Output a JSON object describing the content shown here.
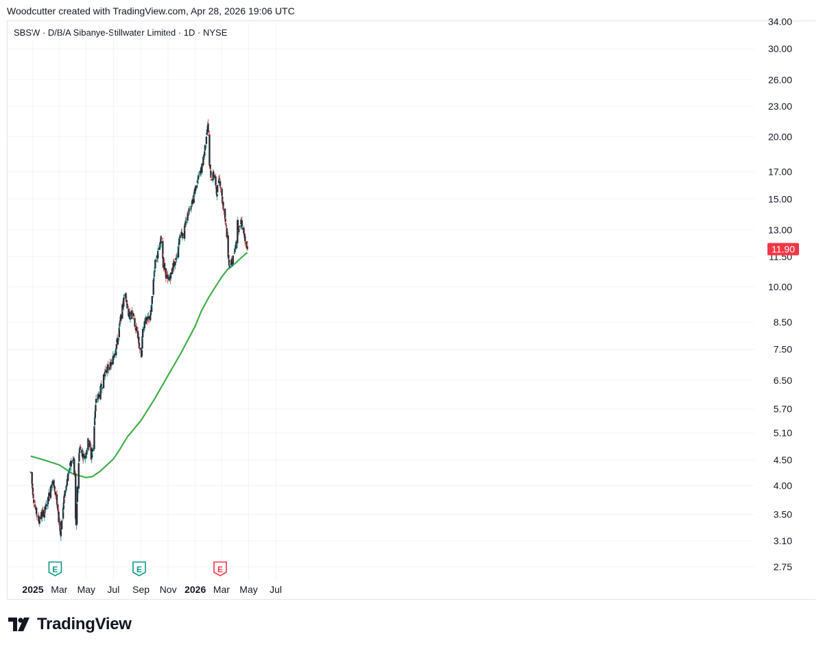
{
  "header": {
    "credit": "Woodcutter created with TradingView.com, Apr 28, 2026 19:06 UTC"
  },
  "symbol_line": "SBSW · D/B/A Sibanye-Stillwater Limited · 1D · NYSE",
  "brand": {
    "name": "TradingView",
    "logo_icon": "tradingview-logo-icon"
  },
  "colors": {
    "up": "#26a69a",
    "down": "#ef5350",
    "candle_body": "#2a2e39",
    "ma": "#3fae48",
    "price_label_bg": "#f23645",
    "grid": "#f0f3fa"
  },
  "chart_data": {
    "type": "candlestick",
    "y_scale": "log",
    "y_ticks": [
      "34.00",
      "30.00",
      "26.00",
      "23.00",
      "20.00",
      "17.00",
      "15.00",
      "13.00",
      "11.50",
      "10.00",
      "8.50",
      "7.50",
      "6.50",
      "5.70",
      "5.10",
      "4.50",
      "4.00",
      "3.50",
      "3.10",
      "2.75"
    ],
    "x_ticks": [
      {
        "label": "2025",
        "bold": true,
        "date": "2025-01-01"
      },
      {
        "label": "Mar",
        "bold": false,
        "date": "2025-03-01"
      },
      {
        "label": "May",
        "bold": false,
        "date": "2025-05-01"
      },
      {
        "label": "Jul",
        "bold": false,
        "date": "2025-07-01"
      },
      {
        "label": "Sep",
        "bold": false,
        "date": "2025-09-01"
      },
      {
        "label": "Nov",
        "bold": false,
        "date": "2025-11-01"
      },
      {
        "label": "2026",
        "bold": true,
        "date": "2026-01-01"
      },
      {
        "label": "Mar",
        "bold": false,
        "date": "2026-03-01"
      },
      {
        "label": "May",
        "bold": false,
        "date": "2026-05-01"
      },
      {
        "label": "Jul",
        "bold": false,
        "date": "2026-07-01"
      }
    ],
    "last_price": "11.90",
    "earnings_markers": [
      {
        "label": "E",
        "date": "2025-02-20",
        "color": "#089981"
      },
      {
        "label": "E",
        "date": "2025-08-28",
        "color": "#089981"
      },
      {
        "label": "E",
        "date": "2026-02-26",
        "color": "#f23645"
      }
    ],
    "price_path": [
      [
        "2024-12-27",
        4.25
      ],
      [
        "2025-01-03",
        3.75
      ],
      [
        "2025-01-08",
        3.55
      ],
      [
        "2025-01-14",
        3.4
      ],
      [
        "2025-01-20",
        3.5
      ],
      [
        "2025-01-27",
        3.55
      ],
      [
        "2025-02-03",
        3.7
      ],
      [
        "2025-02-10",
        4.0
      ],
      [
        "2025-02-14",
        4.05
      ],
      [
        "2025-02-20",
        3.9
      ],
      [
        "2025-02-26",
        3.55
      ],
      [
        "2025-03-04",
        3.2
      ],
      [
        "2025-03-07",
        3.4
      ],
      [
        "2025-03-14",
        3.9
      ],
      [
        "2025-03-21",
        4.2
      ],
      [
        "2025-03-28",
        4.45
      ],
      [
        "2025-04-03",
        4.5
      ],
      [
        "2025-04-07",
        3.4
      ],
      [
        "2025-04-09",
        3.3
      ],
      [
        "2025-04-11",
        4.0
      ],
      [
        "2025-04-16",
        4.8
      ],
      [
        "2025-04-21",
        4.65
      ],
      [
        "2025-04-28",
        4.55
      ],
      [
        "2025-05-06",
        4.95
      ],
      [
        "2025-05-12",
        4.55
      ],
      [
        "2025-05-16",
        4.75
      ],
      [
        "2025-05-20",
        5.5
      ],
      [
        "2025-05-23",
        5.9
      ],
      [
        "2025-05-30",
        6.1
      ],
      [
        "2025-06-06",
        6.4
      ],
      [
        "2025-06-13",
        6.8
      ],
      [
        "2025-06-20",
        6.9
      ],
      [
        "2025-06-27",
        7.0
      ],
      [
        "2025-07-03",
        7.4
      ],
      [
        "2025-07-10",
        7.8
      ],
      [
        "2025-07-17",
        8.6
      ],
      [
        "2025-07-24",
        9.4
      ],
      [
        "2025-07-28",
        9.8
      ],
      [
        "2025-07-31",
        9.3
      ],
      [
        "2025-08-05",
        8.7
      ],
      [
        "2025-08-12",
        8.85
      ],
      [
        "2025-08-19",
        8.3
      ],
      [
        "2025-08-25",
        8.0
      ],
      [
        "2025-08-28",
        7.6
      ],
      [
        "2025-09-02",
        7.3
      ],
      [
        "2025-09-05",
        8.2
      ],
      [
        "2025-09-10",
        8.6
      ],
      [
        "2025-09-15",
        8.5
      ],
      [
        "2025-09-19",
        8.7
      ],
      [
        "2025-09-24",
        8.9
      ],
      [
        "2025-09-29",
        10.3
      ],
      [
        "2025-10-03",
        11.2
      ],
      [
        "2025-10-08",
        11.6
      ],
      [
        "2025-10-14",
        12.1
      ],
      [
        "2025-10-17",
        12.6
      ],
      [
        "2025-10-21",
        11.1
      ],
      [
        "2025-10-27",
        10.6
      ],
      [
        "2025-10-31",
        10.3
      ],
      [
        "2025-11-05",
        10.4
      ],
      [
        "2025-11-12",
        11.0
      ],
      [
        "2025-11-18",
        11.3
      ],
      [
        "2025-11-24",
        12.1
      ],
      [
        "2025-11-28",
        12.9
      ],
      [
        "2025-12-05",
        12.7
      ],
      [
        "2025-12-12",
        13.6
      ],
      [
        "2025-12-19",
        14.4
      ],
      [
        "2025-12-26",
        14.9
      ],
      [
        "2026-01-02",
        15.8
      ],
      [
        "2026-01-09",
        16.6
      ],
      [
        "2026-01-15",
        17.2
      ],
      [
        "2026-01-21",
        18.4
      ],
      [
        "2026-01-26",
        20.3
      ],
      [
        "2026-01-29",
        21.2
      ],
      [
        "2026-02-02",
        17.5
      ],
      [
        "2026-02-06",
        16.5
      ],
      [
        "2026-02-12",
        16.8
      ],
      [
        "2026-02-18",
        15.4
      ],
      [
        "2026-02-24",
        16.7
      ],
      [
        "2026-03-02",
        15.1
      ],
      [
        "2026-03-06",
        14.3
      ],
      [
        "2026-03-12",
        13.2
      ],
      [
        "2026-03-16",
        11.4
      ],
      [
        "2026-03-20",
        11.0
      ],
      [
        "2026-03-26",
        11.3
      ],
      [
        "2026-04-01",
        11.9
      ],
      [
        "2026-04-06",
        13.4
      ],
      [
        "2026-04-10",
        13.0
      ],
      [
        "2026-04-14",
        13.6
      ],
      [
        "2026-04-20",
        12.9
      ],
      [
        "2026-04-24",
        12.4
      ],
      [
        "2026-04-28",
        11.9
      ]
    ],
    "moving_average": [
      [
        "2024-12-27",
        4.58
      ],
      [
        "2025-01-15",
        4.53
      ],
      [
        "2025-02-05",
        4.47
      ],
      [
        "2025-03-01",
        4.4
      ],
      [
        "2025-04-01",
        4.22
      ],
      [
        "2025-05-01",
        4.15
      ],
      [
        "2025-05-15",
        4.17
      ],
      [
        "2025-06-01",
        4.27
      ],
      [
        "2025-07-01",
        4.52
      ],
      [
        "2025-07-15",
        4.72
      ],
      [
        "2025-08-01",
        5.0
      ],
      [
        "2025-09-01",
        5.4
      ],
      [
        "2025-10-01",
        5.95
      ],
      [
        "2025-11-01",
        6.65
      ],
      [
        "2025-12-01",
        7.4
      ],
      [
        "2026-01-01",
        8.35
      ],
      [
        "2026-01-15",
        8.95
      ],
      [
        "2026-02-01",
        9.55
      ],
      [
        "2026-03-01",
        10.45
      ],
      [
        "2026-03-15",
        10.85
      ],
      [
        "2026-04-01",
        11.15
      ],
      [
        "2026-04-15",
        11.45
      ],
      [
        "2026-04-28",
        11.72
      ]
    ]
  }
}
